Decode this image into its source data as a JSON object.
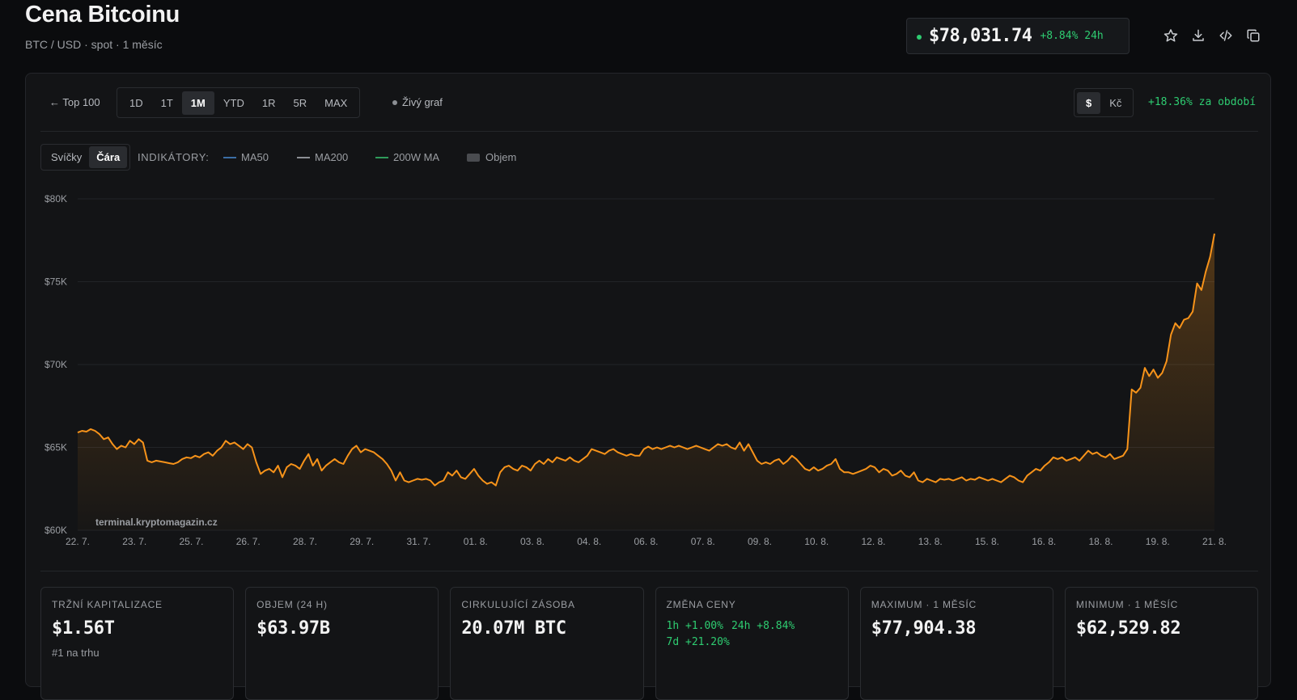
{
  "header": {
    "title": "Cena Bitcoinu",
    "subtitle": "BTC / USD · spot · 1 měsíc",
    "price": "$78,031.74",
    "change_24h": "+8.84% 24h"
  },
  "toolbar": {
    "back_label": "← Top 100",
    "ranges": [
      "1D",
      "1T",
      "1M",
      "YTD",
      "1R",
      "5R",
      "MAX"
    ],
    "active_range": "1M",
    "live_label": "Živý graf",
    "currencies": [
      "$",
      "Kč"
    ],
    "active_currency": "$",
    "period_change": "+18.36% za období"
  },
  "chart_controls": {
    "types": [
      "Svíčky",
      "Čára"
    ],
    "active_type": "Čára",
    "indicators_label": "INDIKÁTORY:",
    "indicators": [
      {
        "name": "MA50",
        "color": "#3b6ea5"
      },
      {
        "name": "MA200",
        "color": "#8c8f94"
      },
      {
        "name": "200W MA",
        "color": "#2e9a5a"
      },
      {
        "name": "Objem",
        "color": "#4a4c50"
      }
    ]
  },
  "chart_data": {
    "type": "area",
    "watermark": "terminal.kryptomagazin.cz",
    "line_color": "#f7931a",
    "ylim": [
      60000,
      80000
    ],
    "yticks": [
      {
        "value": 80000,
        "label": "$80K"
      },
      {
        "value": 75000,
        "label": "$75K"
      },
      {
        "value": 70000,
        "label": "$70K"
      },
      {
        "value": 65000,
        "label": "$65K"
      },
      {
        "value": 60000,
        "label": "$60K"
      }
    ],
    "xticks": [
      "22. 7.",
      "23. 7.",
      "25. 7.",
      "26. 7.",
      "28. 7.",
      "29. 7.",
      "31. 7.",
      "01. 8.",
      "03. 8.",
      "04. 8.",
      "06. 8.",
      "07. 8.",
      "09. 8.",
      "10. 8.",
      "12. 8.",
      "13. 8.",
      "15. 8.",
      "16. 8.",
      "18. 8.",
      "19. 8.",
      "21. 8."
    ],
    "grid": true,
    "legend": "none",
    "values": [
      65900,
      66000,
      65950,
      66100,
      66000,
      65800,
      65500,
      65600,
      65200,
      64900,
      65100,
      65000,
      65400,
      65200,
      65500,
      65300,
      64200,
      64100,
      64200,
      64150,
      64100,
      64050,
      64000,
      64100,
      64300,
      64400,
      64350,
      64500,
      64400,
      64600,
      64700,
      64500,
      64800,
      65000,
      65400,
      65200,
      65300,
      65100,
      64900,
      65200,
      65000,
      64100,
      63400,
      63600,
      63700,
      63500,
      63900,
      63200,
      63800,
      64000,
      63900,
      63700,
      64200,
      64600,
      63900,
      64300,
      63600,
      63900,
      64100,
      64300,
      64100,
      64000,
      64500,
      64900,
      65100,
      64700,
      64900,
      64800,
      64700,
      64500,
      64300,
      64000,
      63600,
      63000,
      63500,
      63000,
      62900,
      63000,
      63100,
      63050,
      63100,
      63000,
      62700,
      62900,
      63000,
      63500,
      63300,
      63600,
      63200,
      63100,
      63400,
      63700,
      63300,
      63000,
      62800,
      62900,
      62700,
      63500,
      63800,
      63900,
      63700,
      63600,
      63900,
      63800,
      63600,
      64000,
      64200,
      64000,
      64300,
      64100,
      64400,
      64300,
      64200,
      64400,
      64200,
      64100,
      64300,
      64500,
      64900,
      64800,
      64700,
      64600,
      64800,
      64900,
      64700,
      64600,
      64500,
      64600,
      64500,
      64500,
      64900,
      65050,
      64900,
      65000,
      64900,
      65000,
      65100,
      65000,
      65100,
      65000,
      64900,
      65000,
      65100,
      65000,
      64900,
      64800,
      65000,
      65200,
      65100,
      65200,
      65000,
      64900,
      65300,
      64800,
      65200,
      64700,
      64200,
      64000,
      64100,
      64000,
      64200,
      64300,
      64000,
      64200,
      64500,
      64300,
      64000,
      63700,
      63600,
      63800,
      63600,
      63700,
      63900,
      64000,
      64300,
      63700,
      63500,
      63500,
      63400,
      63500,
      63600,
      63700,
      63900,
      63800,
      63500,
      63700,
      63600,
      63300,
      63400,
      63600,
      63300,
      63200,
      63500,
      63000,
      62900,
      63100,
      63000,
      62900,
      63100,
      63050,
      63100,
      63000,
      63100,
      63200,
      63000,
      63100,
      63050,
      63200,
      63100,
      63000,
      63100,
      63000,
      62900,
      63100,
      63300,
      63200,
      63000,
      62900,
      63300,
      63500,
      63700,
      63600,
      63900,
      64100,
      64400,
      64300,
      64400,
      64200,
      64300,
      64400,
      64200,
      64500,
      64800,
      64600,
      64700,
      64500,
      64400,
      64600,
      64300,
      64400,
      64500,
      64900,
      68500,
      68300,
      68600,
      69800,
      69300,
      69700,
      69200,
      69500,
      70200,
      71800,
      72500,
      72200,
      72700,
      72800,
      73200,
      74900,
      74500,
      75600,
      76500,
      77900
    ]
  },
  "stats": [
    {
      "label": "TRŽNÍ KAPITALIZACE",
      "value": "$1.56T",
      "sub": "#1 na trhu"
    },
    {
      "label": "OBJEM (24 H)",
      "value": "$63.97B"
    },
    {
      "label": "CIRKULUJÍCÍ ZÁSOBA",
      "value": "20.07M BTC"
    },
    {
      "label": "ZMĚNA CENY",
      "changes": [
        "1h +1.00%",
        "24h +8.84%",
        "7d +21.20%"
      ]
    },
    {
      "label": "MAXIMUM · 1 MĚSÍC",
      "value": "$77,904.38"
    },
    {
      "label": "MINIMUM · 1 MĚSÍC",
      "value": "$62,529.82"
    }
  ]
}
